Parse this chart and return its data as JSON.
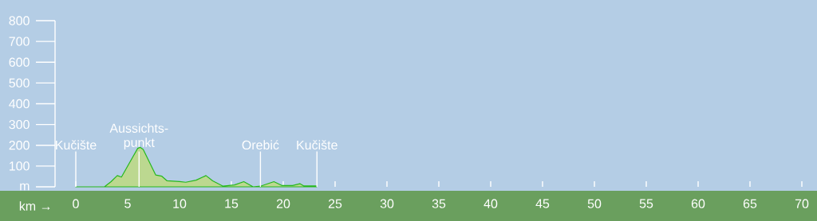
{
  "chart_data": {
    "type": "area",
    "xlabel": "km →",
    "x": [
      0,
      2.76,
      3.4,
      4.0,
      4.4,
      5.45,
      5.97,
      6.2,
      6.5,
      7.7,
      8.3,
      8.8,
      10.0,
      10.6,
      11.6,
      12.55,
      13.2,
      14.2,
      15.3,
      16.2,
      17.1,
      17.8,
      19.1,
      19.9,
      20.9,
      21.6,
      22.0,
      23.2
    ],
    "series": [
      {
        "color": "#bcd890",
        "values": [
          0,
          0,
          25,
          54,
          47,
          140,
          185,
          190,
          180,
          57,
          51,
          29,
          25,
          22,
          32,
          54,
          29,
          3,
          9,
          25,
          0,
          3,
          25,
          6,
          6,
          15,
          4,
          4
        ]
      }
    ],
    "xlim": [
      -2,
      70
    ],
    "ylim": [
      0,
      800
    ],
    "xticks": [
      0,
      5,
      10,
      15,
      20,
      25,
      30,
      35,
      40,
      45,
      50,
      55,
      60,
      65,
      70
    ],
    "yticks": [
      {
        "value": 0,
        "label": "m"
      },
      100,
      200,
      300,
      400,
      500,
      600,
      700,
      800
    ],
    "ref_lines": [
      {
        "axis": "x",
        "value": 0,
        "label": "Kučište",
        "color": "#ffffff"
      },
      {
        "axis": "x",
        "value": 6.1,
        "label": "Aussichts-punkt",
        "color": "#ffffff"
      },
      {
        "axis": "x",
        "value": 17.8,
        "label": "Orebić",
        "color": "#ffffff"
      },
      {
        "axis": "x",
        "value": 23.25,
        "label": "Kučište",
        "color": "#ffffff"
      }
    ],
    "grid": false
  }
}
